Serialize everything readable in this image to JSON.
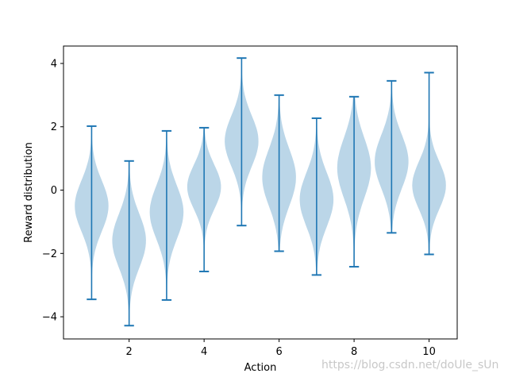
{
  "chart_data": {
    "type": "violin",
    "xlabel": "Action",
    "ylabel": "Reward distribution",
    "xlim": [
      0.25,
      10.75
    ],
    "ylim": [
      -4.7,
      4.55
    ],
    "x_ticks": [
      2,
      4,
      6,
      8,
      10
    ],
    "y_ticks": [
      -4,
      -2,
      0,
      2,
      4
    ],
    "grid": false,
    "colors": {
      "body": "#1f77b4",
      "body_alpha": 0.3,
      "lines": "#1f77b4"
    },
    "actions": [
      {
        "x": 1,
        "min": -3.45,
        "max": 2.02,
        "mode": -0.5,
        "spread": 0.8
      },
      {
        "x": 2,
        "min": -4.28,
        "max": 0.92,
        "mode": -1.6,
        "spread": 0.85
      },
      {
        "x": 3,
        "min": -3.47,
        "max": 1.87,
        "mode": -0.7,
        "spread": 0.85
      },
      {
        "x": 4,
        "min": -2.57,
        "max": 1.97,
        "mode": 0.1,
        "spread": 0.7
      },
      {
        "x": 5,
        "min": -1.12,
        "max": 4.17,
        "mode": 1.55,
        "spread": 0.8
      },
      {
        "x": 6,
        "min": -1.93,
        "max": 3.0,
        "mode": 0.4,
        "spread": 0.9
      },
      {
        "x": 7,
        "min": -2.68,
        "max": 2.27,
        "mode": -0.3,
        "spread": 0.85
      },
      {
        "x": 8,
        "min": -2.42,
        "max": 2.95,
        "mode": 0.7,
        "spread": 0.95
      },
      {
        "x": 9,
        "min": -1.35,
        "max": 3.45,
        "mode": 0.9,
        "spread": 0.85
      },
      {
        "x": 10,
        "min": -2.03,
        "max": 3.71,
        "mode": 0.15,
        "spread": 0.75
      }
    ]
  },
  "watermark": "https://blog.csdn.net/doUle_sUn"
}
